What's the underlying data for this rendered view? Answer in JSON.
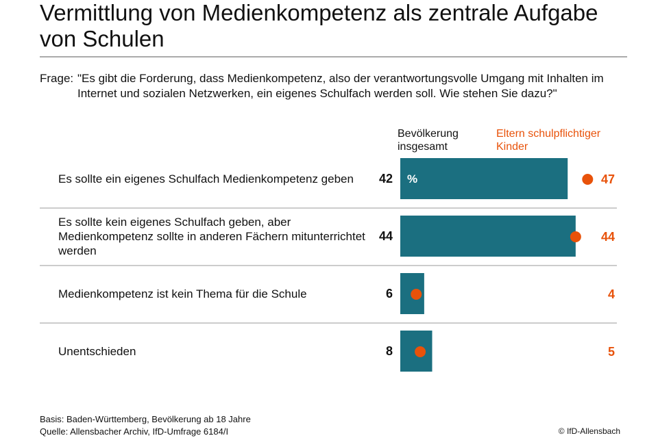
{
  "chart_data": {
    "type": "bar",
    "title": "Vermittlung von Medienkompetenz als zentrale Aufgabe von Schulen",
    "question_label": "Frage:",
    "question": "\"Es gibt die Forderung, dass Medienkompetenz, also der verantwortungsvolle Umgang mit Inhalten im Internet und sozialen Netzwerken, ein eigenes Schulfach werden soll. Wie stehen Sie dazu?\"",
    "categories": [
      "Es sollte ein eigenes Schulfach Medienkompetenz geben",
      "Es sollte kein eigenes Schulfach geben, aber Medienkompetenz sollte in anderen Fächern mitunterrichtet werden",
      "Medienkompetenz ist kein Thema für die Schule",
      "Unentschieden"
    ],
    "series": [
      {
        "name": "Bevölkerung insgesamt",
        "color": "#1b6f80",
        "values": [
          42,
          44,
          6,
          8
        ]
      },
      {
        "name": "Eltern schulpflichtiger Kinder",
        "color": "#e8520a",
        "values": [
          47,
          44,
          4,
          5
        ]
      }
    ],
    "unit": "%",
    "xlim": [
      0,
      54
    ],
    "footnotes": [
      "Basis: Baden-Württemberg, Bevölkerung ab 18 Jahre",
      "Quelle: Allensbacher Archiv, IfD-Umfrage 6184/I"
    ],
    "copyright": "© IfD-Allensbach"
  }
}
